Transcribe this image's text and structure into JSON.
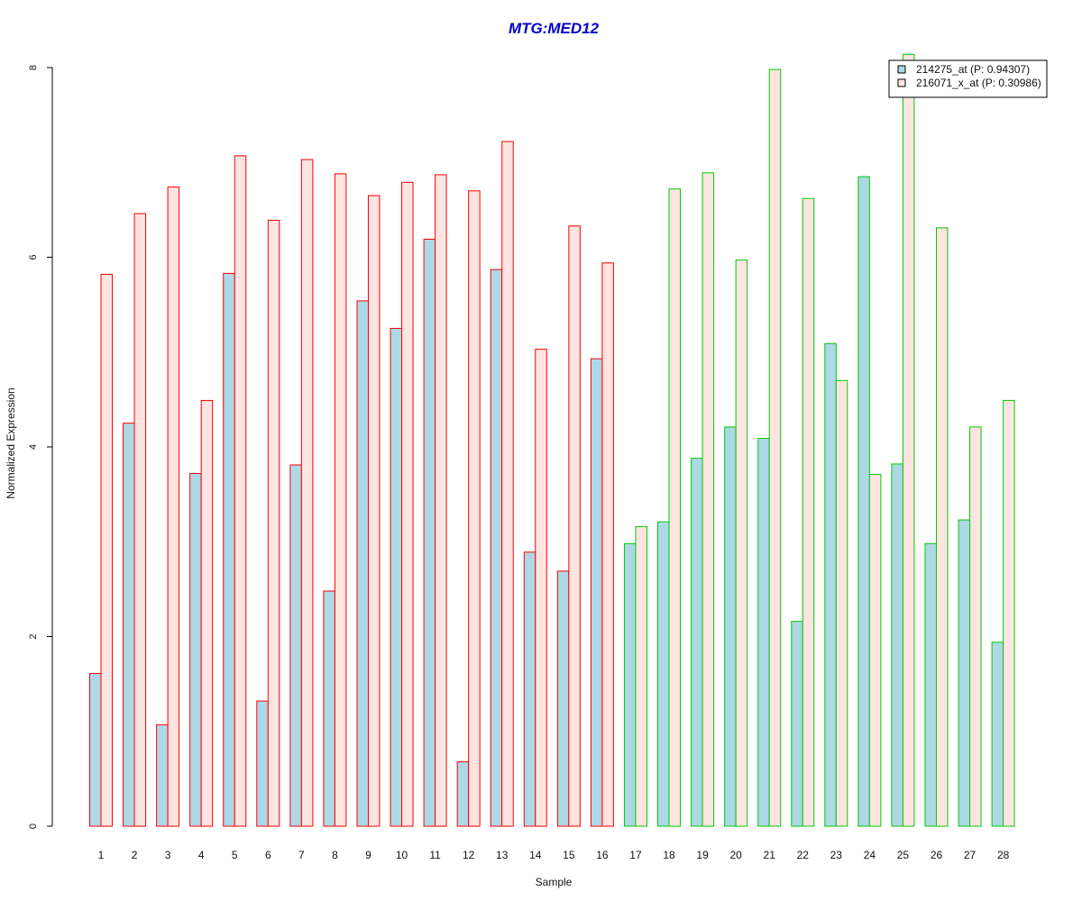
{
  "chart_data": {
    "type": "bar",
    "title": "MTG:MED12",
    "xlabel": "Sample",
    "ylabel": "Normalized Expression",
    "ylim": [
      0,
      8
    ],
    "yticks": [
      0,
      2,
      4,
      6,
      8
    ],
    "grid": false,
    "legend_position": "top-right",
    "categories": [
      "1",
      "2",
      "3",
      "4",
      "5",
      "6",
      "7",
      "8",
      "9",
      "10",
      "11",
      "12",
      "13",
      "14",
      "15",
      "16",
      "17",
      "18",
      "19",
      "20",
      "21",
      "22",
      "23",
      "24",
      "25",
      "26",
      "27",
      "28"
    ],
    "series": [
      {
        "name": "214275_at (P: 0.94307)",
        "values": [
          1.61,
          4.25,
          1.07,
          3.72,
          5.83,
          1.32,
          3.81,
          2.48,
          5.54,
          5.25,
          6.19,
          0.68,
          5.87,
          2.89,
          2.69,
          4.93,
          2.98,
          3.21,
          3.88,
          4.21,
          4.09,
          2.16,
          5.09,
          6.85,
          3.82,
          2.98,
          3.23,
          1.94
        ],
        "fill": "#add8e6"
      },
      {
        "name": "216071_x_at (P: 0.30986)",
        "values": [
          5.82,
          6.46,
          6.74,
          4.49,
          7.07,
          6.39,
          7.03,
          6.88,
          6.65,
          6.79,
          6.87,
          6.7,
          7.22,
          5.03,
          6.33,
          5.94,
          3.16,
          6.72,
          6.89,
          5.97,
          7.98,
          6.62,
          4.7,
          3.71,
          8.14,
          6.31,
          4.21,
          4.49
        ],
        "fill": "#ffe4e1"
      }
    ],
    "group_border_colors": [
      "#ff0000",
      "#00cc00"
    ],
    "group_of_sample": [
      0,
      0,
      0,
      0,
      0,
      0,
      0,
      0,
      0,
      0,
      0,
      0,
      0,
      0,
      0,
      0,
      1,
      1,
      1,
      1,
      1,
      1,
      1,
      1,
      1,
      1,
      1,
      1
    ],
    "title_color": "#0000cc",
    "legend_box_border": "#000000"
  }
}
